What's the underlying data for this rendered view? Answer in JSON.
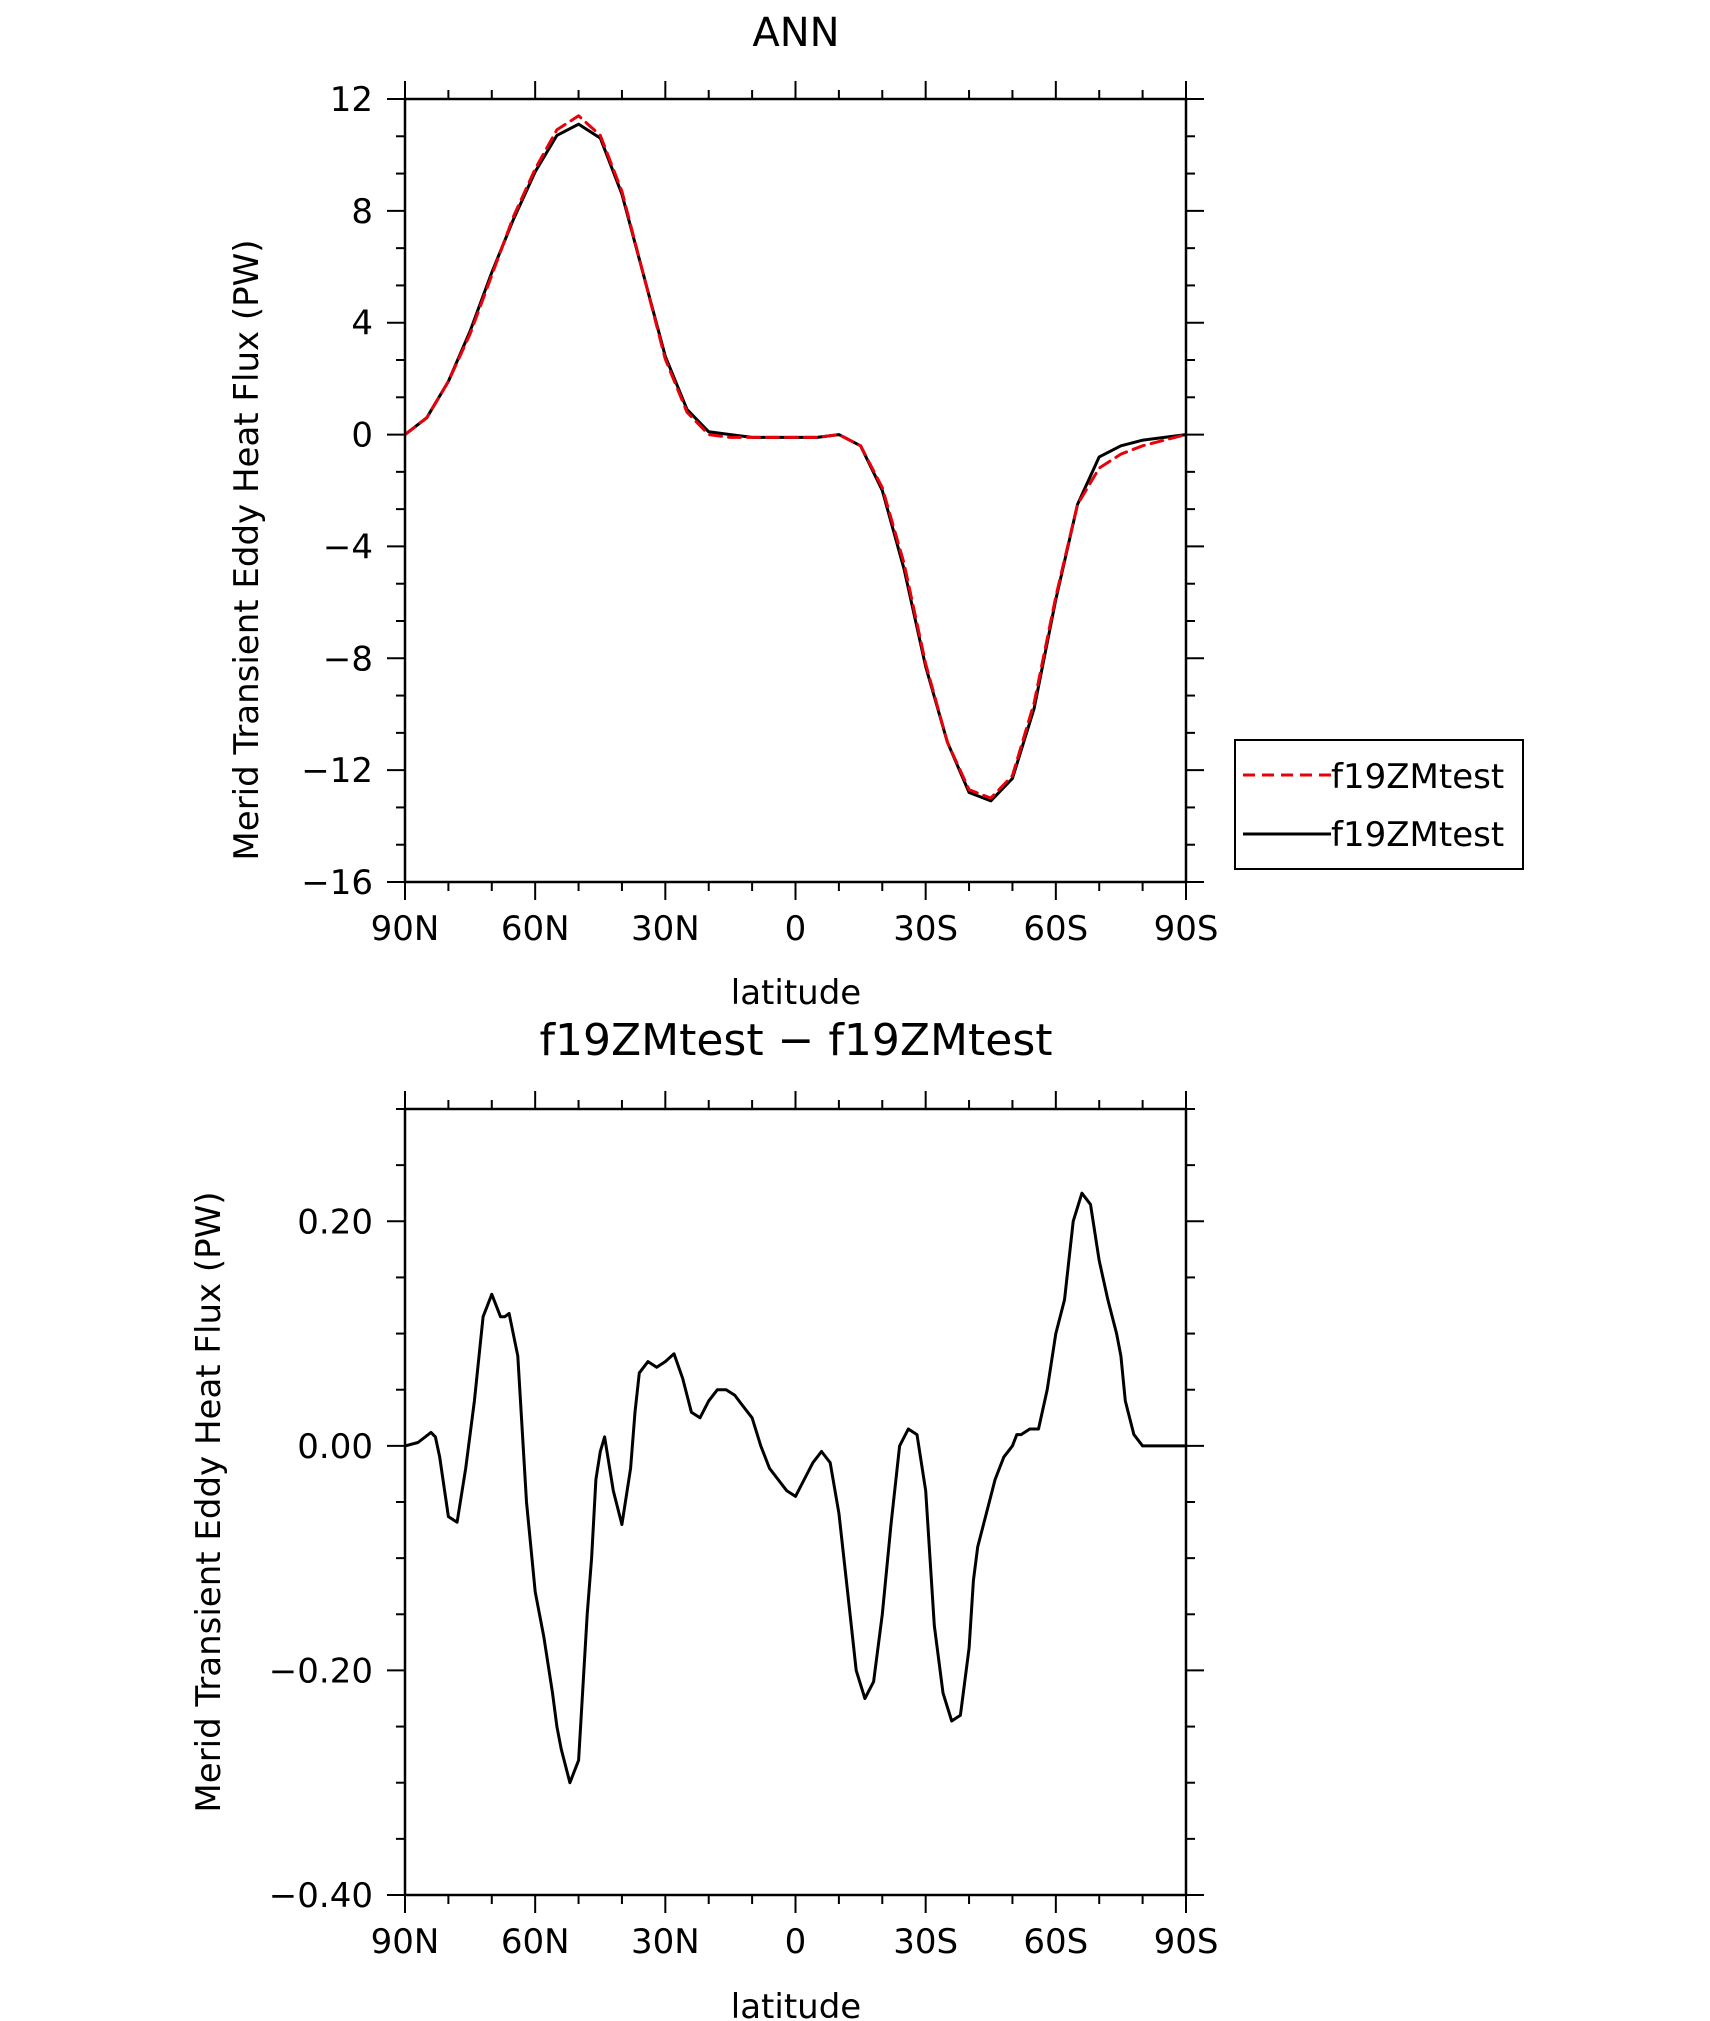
{
  "chart_data": [
    {
      "type": "line",
      "title": "ANN",
      "xlabel": "latitude",
      "ylabel": "Merid Transient Eddy Heat Flux (PW)",
      "xlim": [
        90,
        -90
      ],
      "ylim": [
        -16,
        12
      ],
      "xticks": [
        90,
        60,
        30,
        0,
        -30,
        -60,
        -90
      ],
      "xticklabels": [
        "90N",
        "60N",
        "30N",
        "0",
        "30S",
        "60S",
        "90S"
      ],
      "yticks": [
        12,
        8,
        4,
        0,
        -4,
        -8,
        -12,
        -16
      ],
      "yticklabels": [
        "12",
        "8",
        "4",
        "0",
        "−4",
        "−8",
        "−12",
        "−16"
      ],
      "legend_position": "right-middle",
      "x": [
        90,
        85,
        80,
        75,
        70,
        65,
        60,
        55,
        50,
        45,
        40,
        35,
        30,
        25,
        20,
        15,
        10,
        5,
        0,
        -5,
        -10,
        -15,
        -20,
        -25,
        -30,
        -35,
        -40,
        -45,
        -50,
        -55,
        -60,
        -65,
        -70,
        -75,
        -80,
        -85,
        -90
      ],
      "series": [
        {
          "name": "f19ZMtest",
          "color": "#e8000b",
          "dash": "dashed",
          "values": [
            0.0,
            0.6,
            1.9,
            3.6,
            5.7,
            7.8,
            9.5,
            10.9,
            11.4,
            10.7,
            8.7,
            5.7,
            2.7,
            0.8,
            0.0,
            -0.1,
            -0.1,
            -0.1,
            -0.1,
            -0.1,
            0.0,
            -0.4,
            -1.9,
            -4.6,
            -8.2,
            -11.0,
            -12.7,
            -13.0,
            -12.2,
            -9.6,
            -5.8,
            -2.5,
            -1.2,
            -0.7,
            -0.4,
            -0.2,
            0.0
          ]
        },
        {
          "name": "f19ZMtest",
          "color": "#000000",
          "dash": "solid",
          "values": [
            0.0,
            0.6,
            1.9,
            3.7,
            5.8,
            7.7,
            9.4,
            10.7,
            11.1,
            10.6,
            8.6,
            5.7,
            2.8,
            0.9,
            0.1,
            0.0,
            -0.1,
            -0.1,
            -0.1,
            -0.1,
            0.0,
            -0.4,
            -2.0,
            -4.8,
            -8.3,
            -11.0,
            -12.8,
            -13.1,
            -12.3,
            -9.8,
            -5.9,
            -2.5,
            -0.8,
            -0.4,
            -0.2,
            -0.1,
            0.0
          ]
        }
      ]
    },
    {
      "type": "line",
      "title": "f19ZMtest − f19ZMtest",
      "xlabel": "latitude",
      "ylabel": "Merid Transient Eddy Heat Flux (PW)",
      "xlim": [
        90,
        -90
      ],
      "ylim": [
        -0.4,
        0.3
      ],
      "xticks": [
        90,
        60,
        30,
        0,
        -30,
        -60,
        -90
      ],
      "xticklabels": [
        "90N",
        "60N",
        "30N",
        "0",
        "30S",
        "60S",
        "90S"
      ],
      "yticks": [
        0.2,
        0.0,
        -0.2,
        -0.4
      ],
      "yticklabels": [
        "0.20",
        "0.00",
        "−0.20",
        "−0.40"
      ],
      "x": [
        90,
        87,
        84,
        83,
        82,
        80,
        78,
        76,
        74,
        72,
        70,
        68,
        67,
        66,
        64,
        62,
        60,
        58,
        56,
        55,
        54,
        52,
        50,
        48,
        47,
        46,
        45,
        44,
        42,
        40,
        38,
        37,
        36,
        35,
        34,
        32,
        30,
        28,
        26,
        24,
        22,
        20,
        18,
        16,
        14,
        12,
        10,
        8,
        6,
        4,
        2,
        0,
        -2,
        -4,
        -6,
        -8,
        -10,
        -12,
        -14,
        -16,
        -18,
        -20,
        -22,
        -24,
        -26,
        -28,
        -30,
        -31,
        -32,
        -34,
        -36,
        -38,
        -40,
        -41,
        -42,
        -44,
        -46,
        -48,
        -50,
        -51,
        -52,
        -54,
        -56,
        -58,
        -60,
        -62,
        -64,
        -66,
        -68,
        -70,
        -72,
        -74,
        -75,
        -76,
        -78,
        -80,
        -82,
        -84,
        -86,
        -88,
        -90
      ],
      "series": [
        {
          "name": "",
          "color": "#000000",
          "dash": "solid",
          "values": [
            0.0,
            0.003,
            0.012,
            0.008,
            -0.01,
            -0.063,
            -0.068,
            -0.02,
            0.04,
            0.115,
            0.135,
            0.115,
            0.115,
            0.118,
            0.08,
            -0.05,
            -0.13,
            -0.17,
            -0.22,
            -0.25,
            -0.27,
            -0.3,
            -0.28,
            -0.15,
            -0.1,
            -0.03,
            -0.005,
            0.008,
            -0.04,
            -0.07,
            -0.02,
            0.03,
            0.065,
            0.07,
            0.075,
            0.07,
            0.075,
            0.082,
            0.06,
            0.03,
            0.025,
            0.04,
            0.05,
            0.05,
            0.045,
            0.035,
            0.025,
            0.0,
            -0.02,
            -0.03,
            -0.04,
            -0.045,
            -0.03,
            -0.015,
            -0.005,
            -0.015,
            -0.06,
            -0.13,
            -0.2,
            -0.225,
            -0.21,
            -0.15,
            -0.07,
            0.0,
            0.015,
            0.01,
            -0.04,
            -0.1,
            -0.16,
            -0.22,
            -0.245,
            -0.24,
            -0.18,
            -0.12,
            -0.09,
            -0.06,
            -0.03,
            -0.01,
            0.0,
            0.01,
            0.01,
            0.015,
            0.015,
            0.05,
            0.1,
            0.13,
            0.2,
            0.225,
            0.215,
            0.165,
            0.13,
            0.1,
            0.08,
            0.04,
            0.01,
            0.0,
            0.0,
            0.0,
            0.0,
            0.0,
            0.0
          ]
        }
      ]
    }
  ]
}
